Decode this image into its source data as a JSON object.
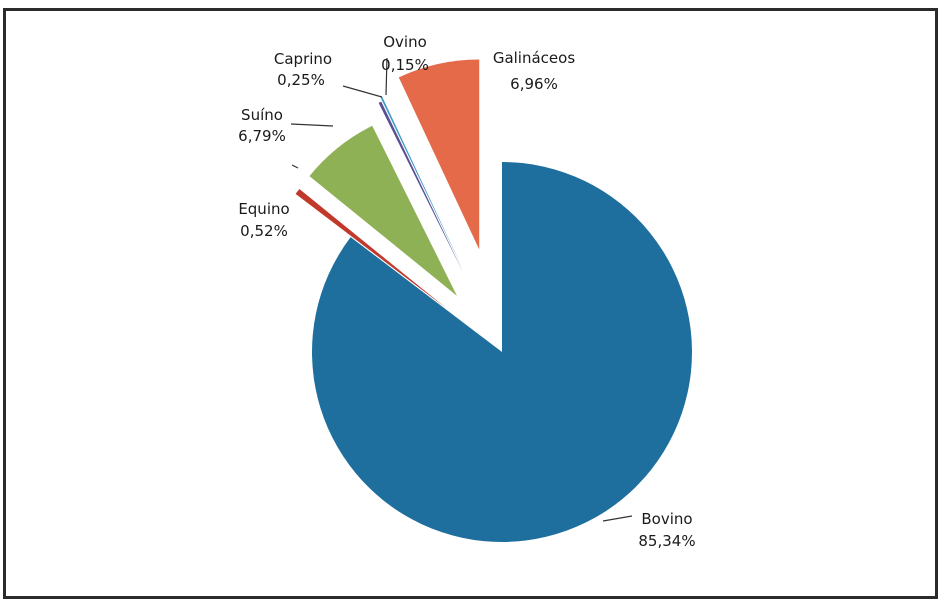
{
  "chart_data": {
    "type": "pie",
    "exploded": true,
    "title": "",
    "slices": [
      {
        "name": "Bovino",
        "value": 85.34,
        "label": "85,34%",
        "color": "#1f6f9e"
      },
      {
        "name": "Equino",
        "value": 0.52,
        "label": "0,52%",
        "color": "#c0392b"
      },
      {
        "name": "Suíno",
        "value": 6.79,
        "label": "6,79%",
        "color": "#8fb156"
      },
      {
        "name": "Caprino",
        "value": 0.25,
        "label": "0,25%",
        "color": "#5a4f96"
      },
      {
        "name": "Ovino",
        "value": 0.15,
        "label": "0,15%",
        "color": "#3a9ac4"
      },
      {
        "name": "Galináceos",
        "value": 6.96,
        "label": "6,96%",
        "color": "#e56a4a"
      }
    ]
  }
}
